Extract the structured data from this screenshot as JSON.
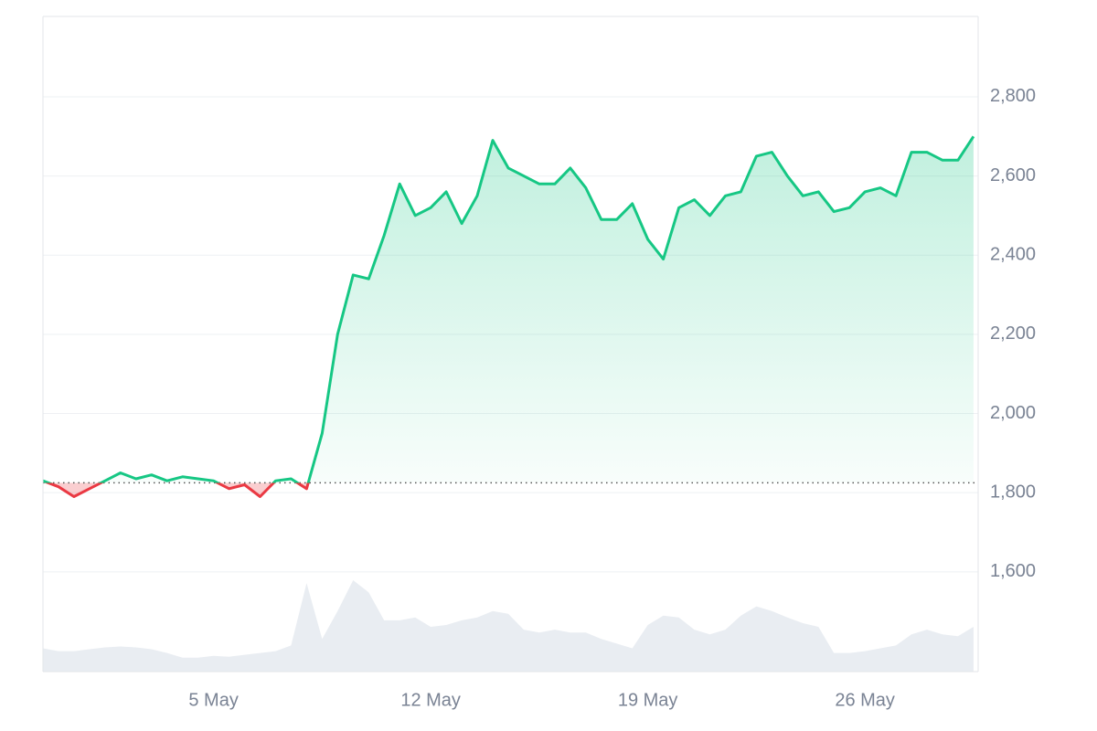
{
  "chart_data": {
    "type": "line",
    "x": [
      -0.5,
      0,
      0.5,
      1,
      1.5,
      2,
      2.5,
      3,
      3.5,
      4,
      4.5,
      5,
      5.5,
      6,
      6.5,
      7,
      7.5,
      8,
      8.5,
      9,
      9.5,
      10,
      10.5,
      11,
      11.5,
      12,
      12.5,
      13,
      13.5,
      14,
      14.5,
      15,
      15.5,
      16,
      16.5,
      17,
      17.5,
      18,
      18.5,
      19,
      19.5,
      20,
      20.5,
      21,
      21.5,
      22,
      22.5,
      23,
      23.5,
      24,
      24.5,
      25,
      25.5,
      26,
      26.5,
      27,
      27.5,
      28,
      28.5,
      29,
      29.5
    ],
    "values": [
      1830,
      1815,
      1790,
      1810,
      1830,
      1850,
      1835,
      1845,
      1830,
      1840,
      1835,
      1830,
      1810,
      1820,
      1790,
      1830,
      1835,
      1810,
      1950,
      2200,
      2350,
      2340,
      2450,
      2580,
      2500,
      2520,
      2560,
      2480,
      2550,
      2690,
      2620,
      2600,
      2580,
      2580,
      2620,
      2570,
      2490,
      2490,
      2530,
      2440,
      2390,
      2520,
      2540,
      2500,
      2550,
      2560,
      2650,
      2660,
      2600,
      2550,
      2560,
      2510,
      2520,
      2560,
      2570,
      2550,
      2660,
      2660,
      2640,
      2640,
      2700
    ],
    "volume": [
      25,
      22,
      22,
      24,
      26,
      27,
      26,
      24,
      20,
      15,
      15,
      17,
      16,
      18,
      20,
      22,
      28,
      95,
      35,
      65,
      98,
      85,
      55,
      55,
      58,
      48,
      50,
      55,
      58,
      65,
      62,
      45,
      42,
      45,
      42,
      42,
      35,
      30,
      25,
      50,
      60,
      58,
      45,
      40,
      45,
      60,
      70,
      65,
      58,
      52,
      48,
      20,
      20,
      22,
      25,
      28,
      40,
      45,
      40,
      38,
      48
    ],
    "volume_lim": [
      0,
      100
    ],
    "baseline": 1825,
    "up_color": "#16c784",
    "down_color": "#ea3943",
    "volume_color": "#e9edf2",
    "xlim": [
      -0.5,
      29.65
    ],
    "xticks": [
      {
        "value": 5,
        "label": "5 May"
      },
      {
        "value": 12,
        "label": "12 May"
      },
      {
        "value": 19,
        "label": "19 May"
      },
      {
        "value": 26,
        "label": "26 May"
      }
    ],
    "ylim": [
      1348,
      3003
    ],
    "yticks": [
      {
        "value": 1600,
        "label": "1,600"
      },
      {
        "value": 1800,
        "label": "1,800"
      },
      {
        "value": 2000,
        "label": "2,000"
      },
      {
        "value": 2200,
        "label": "2,200"
      },
      {
        "value": 2400,
        "label": "2,400"
      },
      {
        "value": 2600,
        "label": "2,600"
      },
      {
        "value": 2800,
        "label": "2,800"
      }
    ],
    "grid": true
  }
}
